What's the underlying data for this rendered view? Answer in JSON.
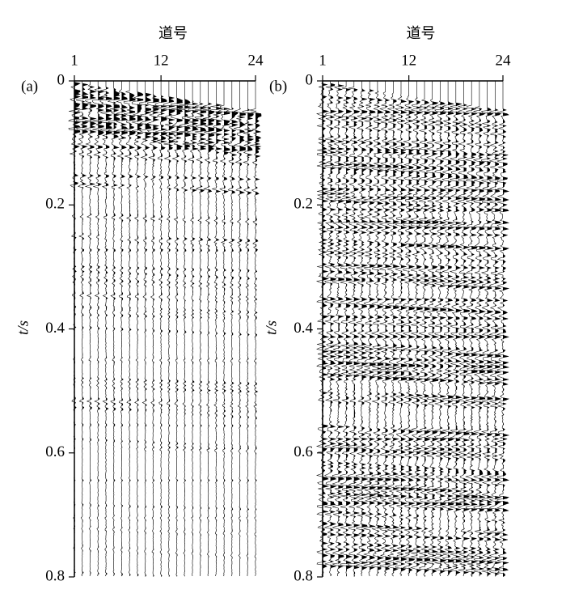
{
  "chart_data": [
    {
      "type": "seismic",
      "panel_label": "(a)",
      "x_label": "道号",
      "y_label": "t/s",
      "xlim": [
        1,
        24
      ],
      "xticks": [
        1,
        12,
        24
      ],
      "ylim": [
        0,
        0.8
      ],
      "yticks": [
        0,
        0.2,
        0.4,
        0.6,
        0.8
      ],
      "color": "#000000"
    },
    {
      "type": "seismic",
      "panel_label": "(b)",
      "x_label": "道号",
      "y_label": "t/s",
      "xlim": [
        1,
        24
      ],
      "xticks": [
        1,
        12,
        24
      ],
      "ylim": [
        0,
        0.8
      ],
      "yticks": [
        0,
        0.2,
        0.4,
        0.6,
        0.8
      ],
      "color": "#000000"
    }
  ]
}
